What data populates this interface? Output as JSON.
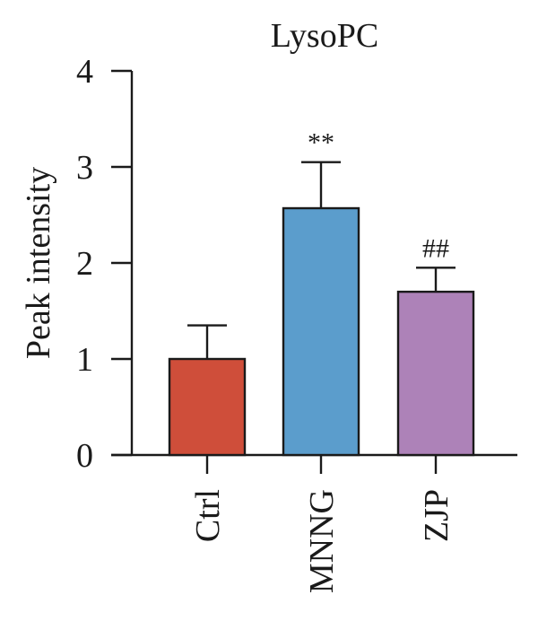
{
  "chart_data": {
    "type": "bar",
    "title": "LysoPC",
    "xlabel": "",
    "ylabel": "Peak intensity",
    "ylim": [
      0,
      4
    ],
    "yticks": [
      "0",
      "1",
      "2",
      "3",
      "4"
    ],
    "categories": [
      "Ctrl",
      "MNNG",
      "ZJP"
    ],
    "values": [
      1.0,
      2.57,
      1.7
    ],
    "error_upper": [
      0.35,
      0.48,
      0.25
    ],
    "annotations": [
      "",
      "**",
      "##"
    ],
    "colors": [
      "#cf4e3a",
      "#5b9dcc",
      "#ad82b8"
    ],
    "grid": false,
    "legend": "none"
  }
}
